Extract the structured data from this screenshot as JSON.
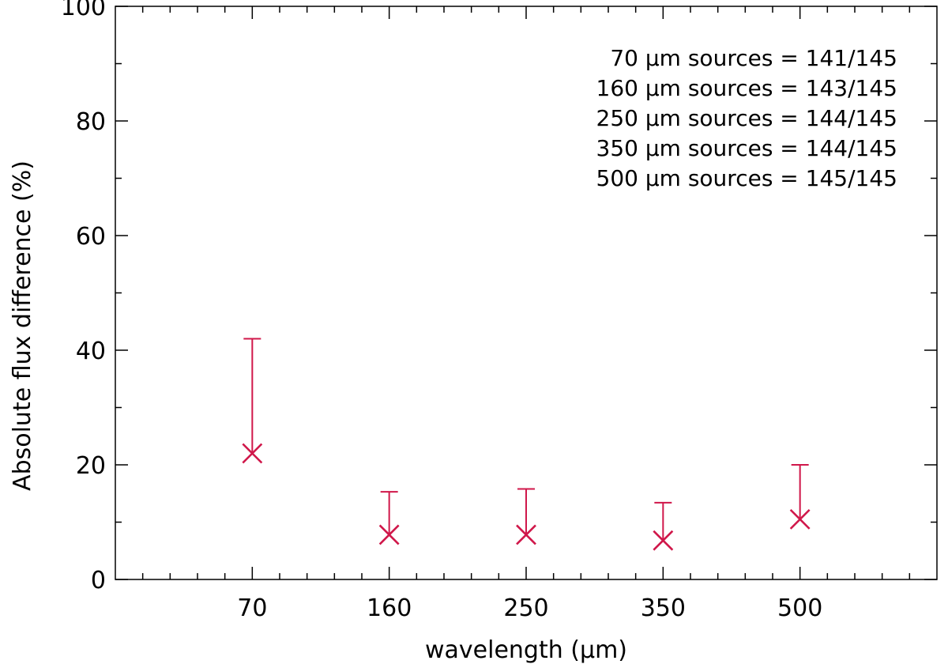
{
  "chart_data": {
    "type": "scatter",
    "title": "",
    "xlabel": "wavelength (μm)",
    "ylabel": "Absolute flux difference (%)",
    "categories": [
      "70",
      "160",
      "250",
      "350",
      "500"
    ],
    "ylim": [
      0,
      100
    ],
    "yticks": [
      "0",
      "20",
      "40",
      "60",
      "80",
      "100"
    ],
    "grid": false,
    "series": [
      {
        "marker": "x",
        "color": "#d0174a",
        "values": [
          22,
          7.8,
          7.8,
          6.8,
          10.5
        ],
        "upper_error": [
          42,
          15.3,
          15.8,
          13.4,
          20
        ]
      }
    ],
    "annotations": [
      "70 μm sources = 141/145",
      "160 μm sources = 143/145",
      "250 μm sources = 144/145",
      "350 μm sources = 144/145",
      "500 μm sources = 145/145"
    ]
  }
}
